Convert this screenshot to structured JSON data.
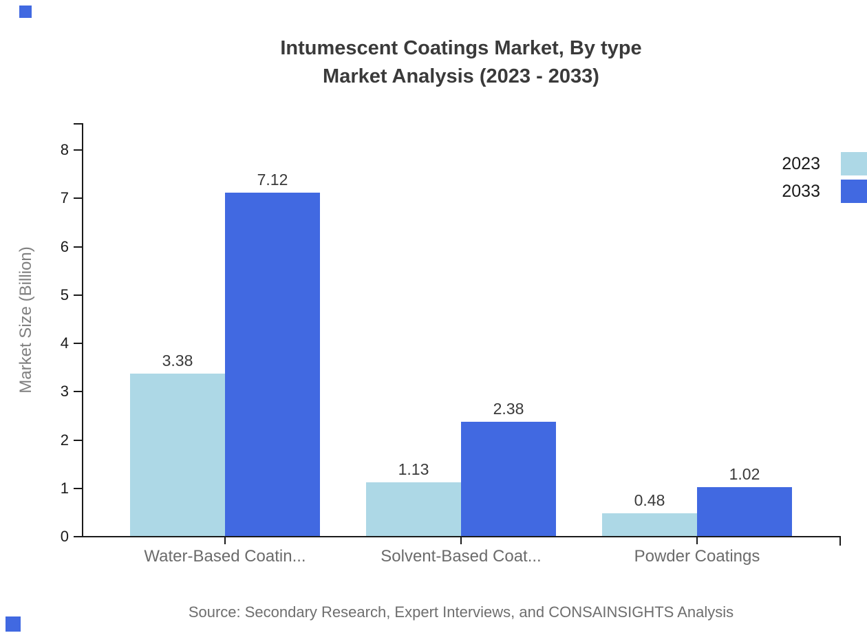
{
  "title": {
    "line1": "Intumescent Coatings Market, By type",
    "line2": "Market Analysis (2023 - 2033)"
  },
  "source": "Source: Secondary Research, Expert Interviews, and CONSAINSIGHTS Analysis",
  "accents": {
    "corner_square_color": "#4169E1",
    "axis_color": "#1a1a1a"
  },
  "chart_data": {
    "type": "bar",
    "title": "Intumescent Coatings Market, By type — Market Analysis (2023 - 2033)",
    "categories": [
      "Water-Based Coatin...",
      "Solvent-Based Coat...",
      "Powder Coatings"
    ],
    "series": [
      {
        "name": "2023",
        "color": "#ADD8E6",
        "values": [
          3.38,
          1.13,
          0.48
        ]
      },
      {
        "name": "2033",
        "color": "#4169E1",
        "values": [
          7.12,
          2.38,
          1.02
        ]
      }
    ],
    "xlabel": "",
    "ylabel": "Market Size (Billion)",
    "ylim": [
      0,
      8.5
    ],
    "yticks": [
      0,
      1,
      2,
      3,
      4,
      5,
      6,
      7,
      8
    ],
    "grid": false,
    "legend_position": "top-right",
    "value_labels_shown": true
  }
}
